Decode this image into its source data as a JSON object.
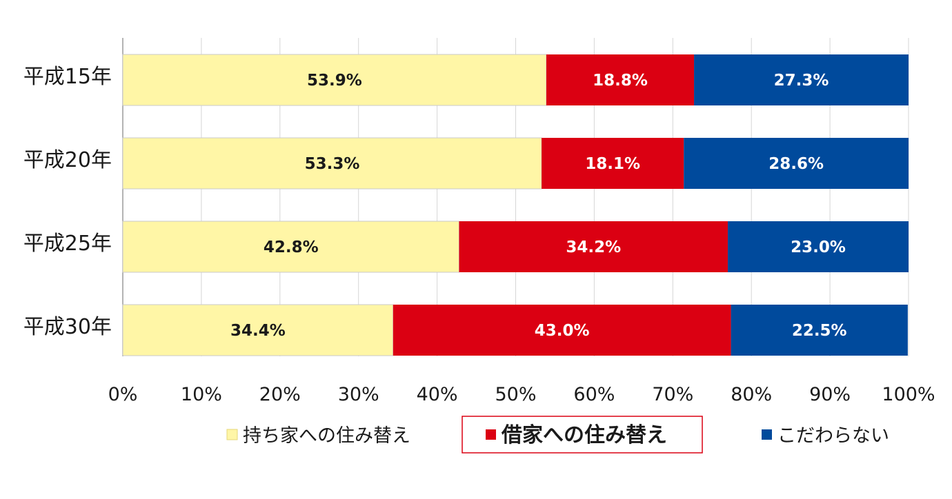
{
  "chart_data": {
    "type": "bar",
    "orientation": "horizontal",
    "stacked": true,
    "categories": [
      "平成15年",
      "平成20年",
      "平成25年",
      "平成30年"
    ],
    "series": [
      {
        "name": "持ち家への住み替え",
        "color": "#FFF6A6",
        "label_color": "#1a1a1a",
        "values": [
          53.9,
          53.3,
          42.8,
          34.4
        ]
      },
      {
        "name": "借家への住み替え",
        "color": "#DB0012",
        "label_color": "#ffffff",
        "values": [
          18.8,
          18.1,
          34.2,
          43.0
        ]
      },
      {
        "name": "こだわらない",
        "color": "#004A9C",
        "label_color": "#ffffff",
        "values": [
          27.3,
          28.6,
          23.0,
          22.5
        ]
      }
    ],
    "data_labels": [
      [
        "53.9%",
        "18.8%",
        "27.3%"
      ],
      [
        "53.3%",
        "18.1%",
        "28.6%"
      ],
      [
        "42.8%",
        "34.2%",
        "23.0%"
      ],
      [
        "34.4%",
        "43.0%",
        "22.5%"
      ]
    ],
    "xticks": [
      "0%",
      "10%",
      "20%",
      "30%",
      "40%",
      "50%",
      "60%",
      "70%",
      "80%",
      "90%",
      "100%"
    ],
    "xlim": [
      0,
      100
    ],
    "grid": true,
    "legend_position": "bottom",
    "legend_highlight": "借家への住み替え",
    "title": "",
    "xlabel": "",
    "ylabel": ""
  }
}
